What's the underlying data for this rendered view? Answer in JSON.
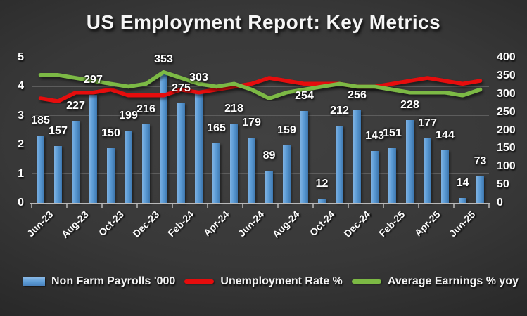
{
  "title": "US Employment Report: Key Metrics",
  "chart_data": {
    "type": "bar",
    "subtype": "combo-bar-line",
    "title": "US Employment Report: Key Metrics",
    "categories": [
      "Jun-23",
      "Jul-23",
      "Aug-23",
      "Sep-23",
      "Oct-23",
      "Nov-23",
      "Dec-23",
      "Jan-24",
      "Feb-24",
      "Mar-24",
      "Apr-24",
      "May-24",
      "Jun-24",
      "Jul-24",
      "Aug-24",
      "Sep-24",
      "Oct-24",
      "Nov-24",
      "Dec-24",
      "Jan-25",
      "Feb-25",
      "Mar-25",
      "Apr-25",
      "May-25",
      "Jun-25",
      "Jul-25"
    ],
    "x_axis_tick_labels": [
      "Jun-23",
      "Aug-23",
      "Oct-23",
      "Dec-23",
      "Feb-24",
      "Apr-24",
      "Jun-24",
      "Aug-24",
      "Oct-24",
      "Dec-24",
      "Feb-25",
      "Apr-25",
      "Jun-25"
    ],
    "x_tick_interval": 2,
    "series": [
      {
        "name": "Non Farm Payrolls '000",
        "type": "bar",
        "axis": "right",
        "color": "#5B9BD5",
        "values": [
          185,
          157,
          227,
          297,
          150,
          199,
          216,
          353,
          275,
          303,
          165,
          218,
          179,
          89,
          159,
          254,
          12,
          212,
          256,
          143,
          151,
          228,
          177,
          144,
          14,
          73
        ],
        "data_labels": true
      },
      {
        "name": "Unemployment Rate %",
        "type": "line",
        "axis": "left",
        "color": "#E60C0C",
        "values": [
          3.6,
          3.5,
          3.8,
          3.8,
          3.9,
          3.7,
          3.7,
          3.7,
          3.9,
          3.8,
          3.9,
          4.0,
          4.1,
          4.3,
          4.2,
          4.1,
          4.1,
          4.1,
          4.0,
          4.0,
          4.1,
          4.2,
          4.3,
          4.2,
          4.1,
          4.2
        ],
        "data_labels": false
      },
      {
        "name": "Average Earnings % yoy",
        "type": "line",
        "axis": "left",
        "color": "#7CB944",
        "values": [
          4.4,
          4.4,
          4.3,
          4.2,
          4.1,
          4.0,
          4.1,
          4.5,
          4.3,
          4.1,
          4.0,
          4.1,
          3.9,
          3.6,
          3.8,
          3.9,
          4.0,
          4.1,
          4.0,
          4.0,
          3.9,
          3.8,
          3.8,
          3.8,
          3.7,
          3.9
        ],
        "data_labels": false
      }
    ],
    "left_axis": {
      "min": 0,
      "max": 5,
      "ticks": [
        0,
        1,
        2,
        3,
        4,
        5
      ]
    },
    "right_axis": {
      "min": 0,
      "max": 400,
      "ticks": [
        400,
        350,
        300,
        250,
        200,
        150,
        100,
        50,
        0
      ]
    },
    "grid": true,
    "legend_position": "bottom"
  },
  "legend": {
    "items": [
      {
        "label": "Non Farm Payrolls '000",
        "marker": "bar",
        "color": "#5B9BD5"
      },
      {
        "label": "Unemployment Rate %",
        "marker": "line",
        "color": "#E60C0C"
      },
      {
        "label": "Average Earnings % yoy",
        "marker": "line",
        "color": "#7CB944"
      }
    ]
  },
  "colors": {
    "background_center": "#414141",
    "background_edge": "#191919",
    "gridline": "#5d5d5d",
    "axis_text": "#fdfdfd",
    "bar": "#5B9BD5",
    "unemployment_line": "#E60C0C",
    "earnings_line": "#7CB944"
  }
}
